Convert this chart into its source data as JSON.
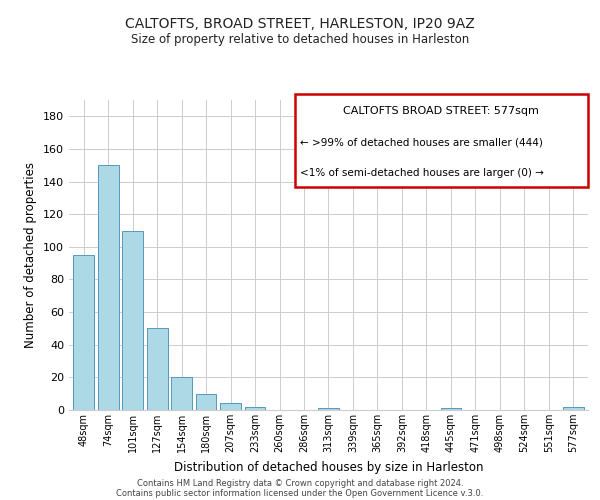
{
  "title": "CALTOFTS, BROAD STREET, HARLESTON, IP20 9AZ",
  "subtitle": "Size of property relative to detached houses in Harleston",
  "xlabel": "Distribution of detached houses by size in Harleston",
  "ylabel": "Number of detached properties",
  "bar_labels": [
    "48sqm",
    "74sqm",
    "101sqm",
    "127sqm",
    "154sqm",
    "180sqm",
    "207sqm",
    "233sqm",
    "260sqm",
    "286sqm",
    "313sqm",
    "339sqm",
    "365sqm",
    "392sqm",
    "418sqm",
    "445sqm",
    "471sqm",
    "498sqm",
    "524sqm",
    "551sqm",
    "577sqm"
  ],
  "bar_values": [
    95,
    150,
    110,
    50,
    20,
    10,
    4,
    2,
    0,
    0,
    1,
    0,
    0,
    0,
    0,
    1,
    0,
    0,
    0,
    0,
    2
  ],
  "bar_color": "#add8e6",
  "bar_edge_color": "#5599bb",
  "ylim": [
    0,
    190
  ],
  "yticks": [
    0,
    20,
    40,
    60,
    80,
    100,
    120,
    140,
    160,
    180
  ],
  "annotation_box_title": "CALTOFTS BROAD STREET: 577sqm",
  "annotation_line1": "← >99% of detached houses are smaller (444)",
  "annotation_line2": "<1% of semi-detached houses are larger (0) →",
  "annotation_box_color": "#ffffff",
  "annotation_box_edge_color": "#cc0000",
  "footer1": "Contains HM Land Registry data © Crown copyright and database right 2024.",
  "footer2": "Contains public sector information licensed under the Open Government Licence v.3.0.",
  "background_color": "#ffffff",
  "grid_color": "#cccccc"
}
